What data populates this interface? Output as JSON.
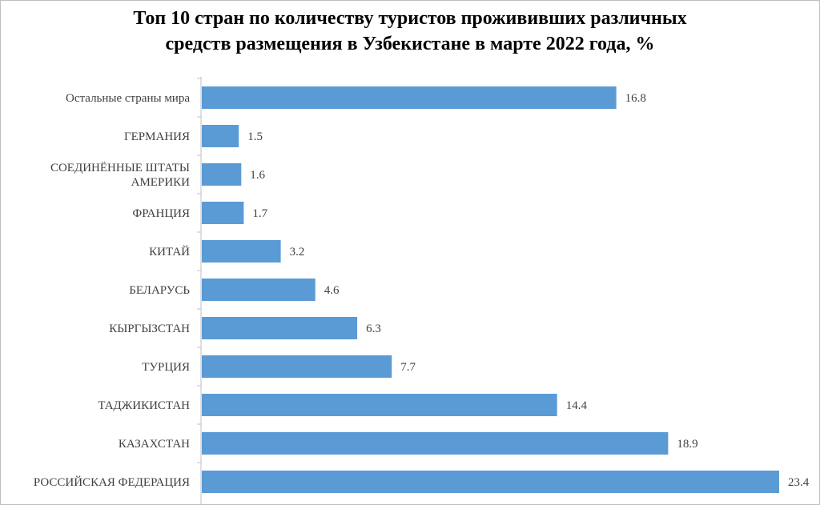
{
  "chart_data": {
    "type": "bar",
    "orientation": "horizontal",
    "title": [
      "Топ 10 стран по количеству туристов прожививших различных",
      "средств размещения в Узбекистане в марте 2022 года, %"
    ],
    "categories": [
      [
        "Остальные страны мира"
      ],
      [
        "ГЕРМАНИЯ"
      ],
      [
        "СОЕДИНЁННЫЕ ШТАТЫ",
        "АМЕРИКИ"
      ],
      [
        "ФРАНЦИЯ"
      ],
      [
        "КИТАЙ"
      ],
      [
        "БЕЛАРУСЬ"
      ],
      [
        "КЫРГЫЗСТАН"
      ],
      [
        "ТУРЦИЯ"
      ],
      [
        "ТАДЖИКИСТАН"
      ],
      [
        "КАЗАХСТАН"
      ],
      [
        "РОССИЙСКАЯ ФЕДЕРАЦИЯ"
      ]
    ],
    "values": [
      16.8,
      1.5,
      1.6,
      1.7,
      3.2,
      4.6,
      6.3,
      7.7,
      14.4,
      18.9,
      23.4
    ],
    "value_labels": [
      "16.8",
      "1.5",
      "1.6",
      "1.7",
      "3.2",
      "4.6",
      "6.3",
      "7.7",
      "14.4",
      "18.9",
      "23.4"
    ],
    "xlim": [
      0,
      23.4
    ],
    "grid": false,
    "legend": "none",
    "bar_color": "#5b9bd5",
    "axis_color": "#bfbfbf"
  }
}
